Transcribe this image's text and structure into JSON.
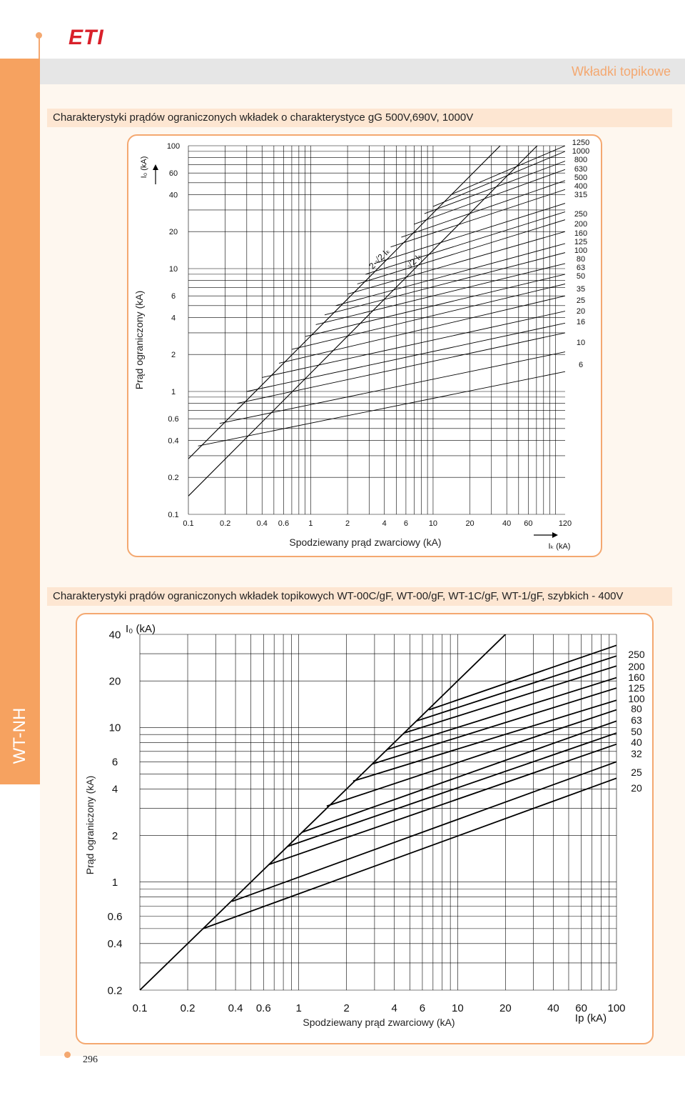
{
  "brand": {
    "logo": "ETI",
    "accent": "#f4a870",
    "logo_color": "#d9202a"
  },
  "header": {
    "title": "Wkładki topikowe"
  },
  "sidebar": {
    "label": "WT-NH"
  },
  "page": {
    "number": "296"
  },
  "sections": [
    {
      "title": "Charakterystyki prądów ograniczonych wkładek o charakterystyce gG  500V,690V, 1000V"
    },
    {
      "title": "Charakterystyki prądów ograniczonych wkładek topikowych WT-00C/gF, WT-00/gF, WT-1C/gF, WT-1/gF, szybkich - 400V"
    }
  ],
  "chart_data": [
    {
      "type": "line",
      "scale": "log-log",
      "xlabel": "Spodziewany prąd zwarciowy (kA)",
      "xunit": "Iₖ (kA)",
      "ylabel": "Prąd ograniczony (kA)",
      "yunit": "I₀ (kA)",
      "xlim": [
        0.1,
        120
      ],
      "ylim": [
        0.1,
        100
      ],
      "x_ticks": [
        "0.1",
        "0.2",
        "0.4",
        "0.6",
        "1",
        "2",
        "4",
        "6",
        "10",
        "20",
        "40",
        "60",
        "120"
      ],
      "y_ticks": [
        "0.1",
        "0.2",
        "0.4",
        "0.6",
        "1",
        "2",
        "4",
        "6",
        "10",
        "20",
        "40",
        "60",
        "100"
      ],
      "grid": true,
      "reference_lines": [
        {
          "label": "2·√2 Iₖ",
          "factor": 2.83
        },
        {
          "label": "√2 Iₖ",
          "factor": 1.41
        }
      ],
      "rating_labels": [
        "1250",
        "1000",
        "800",
        "630",
        "500",
        "400",
        "315",
        "250",
        "200",
        "160",
        "125",
        "100",
        "80",
        "63",
        "50",
        "35",
        "25",
        "20",
        "16",
        "10",
        "6"
      ],
      "series": [
        {
          "name": "1250",
          "points": [
            [
              14,
              40
            ],
            [
              120,
              100
            ]
          ]
        },
        {
          "name": "1000",
          "points": [
            [
              10,
              32
            ],
            [
              120,
              90
            ]
          ]
        },
        {
          "name": "800",
          "points": [
            [
              8.5,
              28
            ],
            [
              120,
              75
            ]
          ]
        },
        {
          "name": "630",
          "points": [
            [
              7,
              23
            ],
            [
              120,
              64
            ]
          ]
        },
        {
          "name": "500",
          "points": [
            [
              5.5,
              18
            ],
            [
              120,
              52
            ]
          ]
        },
        {
          "name": "400",
          "points": [
            [
              4.5,
              15
            ],
            [
              120,
              44
            ]
          ]
        },
        {
          "name": "315",
          "points": [
            [
              3.3,
              11
            ],
            [
              120,
              34
            ]
          ]
        },
        {
          "name": "250",
          "points": [
            [
              2.8,
              9
            ],
            [
              120,
              29
            ]
          ]
        },
        {
          "name": "200",
          "points": [
            [
              2.4,
              7.5
            ],
            [
              120,
              25
            ]
          ]
        },
        {
          "name": "160",
          "points": [
            [
              2,
              6.2
            ],
            [
              120,
              20
            ]
          ]
        },
        {
          "name": "125",
          "points": [
            [
              1.6,
              5
            ],
            [
              120,
              16
            ]
          ]
        },
        {
          "name": "100",
          "points": [
            [
              1.3,
              4.2
            ],
            [
              120,
              13.5
            ]
          ]
        },
        {
          "name": "80",
          "points": [
            [
              1.1,
              3.5
            ],
            [
              120,
              11
            ]
          ]
        },
        {
          "name": "63",
          "points": [
            [
              0.9,
              2.8
            ],
            [
              120,
              9
            ]
          ]
        },
        {
          "name": "50",
          "points": [
            [
              0.7,
              2.2
            ],
            [
              120,
              7.5
            ]
          ]
        },
        {
          "name": "35",
          "points": [
            [
              0.55,
              1.7
            ],
            [
              120,
              6
            ]
          ]
        },
        {
          "name": "25",
          "points": [
            [
              0.4,
              1.3
            ],
            [
              120,
              4.5
            ]
          ]
        },
        {
          "name": "20",
          "points": [
            [
              0.3,
              1.0
            ],
            [
              120,
              3.6
            ]
          ]
        },
        {
          "name": "16",
          "points": [
            [
              0.25,
              0.8
            ],
            [
              120,
              3.0
            ]
          ]
        },
        {
          "name": "10",
          "points": [
            [
              0.18,
              0.55
            ],
            [
              120,
              2.1
            ]
          ]
        },
        {
          "name": "6",
          "points": [
            [
              0.12,
              0.36
            ],
            [
              120,
              1.45
            ]
          ]
        }
      ]
    },
    {
      "type": "line",
      "scale": "log-log",
      "xlabel": "Spodziewany prąd zwarciowy (kA)",
      "xunit": "Ip (kA)",
      "ylabel": "Prąd ograniczony (kA)",
      "yunit": "I₀ (kA)",
      "xlim": [
        0.1,
        100
      ],
      "ylim": [
        0.2,
        40
      ],
      "x_ticks": [
        "0.1",
        "0.2",
        "0.4",
        "0.6",
        "1",
        "2",
        "4",
        "6",
        "10",
        "20",
        "40",
        "60",
        "100"
      ],
      "y_ticks": [
        "0.2",
        "0.4",
        "0.6",
        "1",
        "2",
        "4",
        "6",
        "10",
        "20",
        "40"
      ],
      "grid": true,
      "reference_lines": [
        {
          "label": "",
          "factor": 2.0
        }
      ],
      "rating_labels": [
        "250",
        "200",
        "160",
        "125",
        "100",
        "80",
        "63",
        "50",
        "40",
        "32",
        "25",
        "20"
      ],
      "series": [
        {
          "name": "250",
          "points": [
            [
              6.6,
              13
            ],
            [
              100,
              34
            ]
          ]
        },
        {
          "name": "200",
          "points": [
            [
              5.5,
              11
            ],
            [
              100,
              29
            ]
          ]
        },
        {
          "name": "160",
          "points": [
            [
              4.6,
              9.2
            ],
            [
              100,
              25
            ]
          ]
        },
        {
          "name": "125",
          "points": [
            [
              3.6,
              7.2
            ],
            [
              100,
              21
            ]
          ]
        },
        {
          "name": "100",
          "points": [
            [
              2.9,
              5.8
            ],
            [
              100,
              18
            ]
          ]
        },
        {
          "name": "80",
          "points": [
            [
              2.2,
              4.5
            ],
            [
              100,
              15
            ]
          ]
        },
        {
          "name": "63",
          "points": [
            [
              1.5,
              3.1
            ],
            [
              100,
              13
            ]
          ]
        },
        {
          "name": "50",
          "points": [
            [
              1.05,
              2.1
            ],
            [
              100,
              11
            ]
          ]
        },
        {
          "name": "40",
          "points": [
            [
              0.85,
              1.7
            ],
            [
              100,
              9.2
            ]
          ]
        },
        {
          "name": "32",
          "points": [
            [
              0.65,
              1.3
            ],
            [
              100,
              7.8
            ]
          ]
        },
        {
          "name": "25",
          "points": [
            [
              0.38,
              0.75
            ],
            [
              100,
              6.0
            ]
          ]
        },
        {
          "name": "20",
          "points": [
            [
              0.25,
              0.5
            ],
            [
              100,
              4.7
            ]
          ]
        }
      ]
    }
  ]
}
